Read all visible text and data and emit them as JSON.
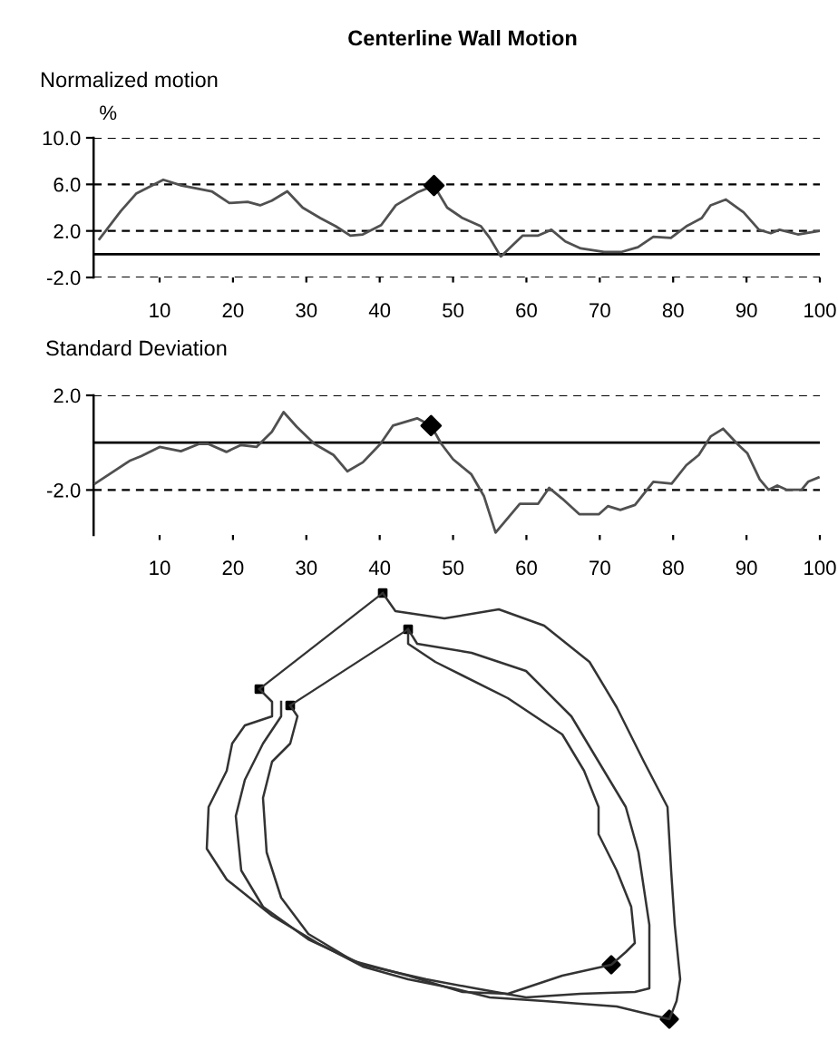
{
  "chart_data": [
    {
      "type": "line",
      "title": "Centerline Wall Motion",
      "subtitle": "Normalized motion",
      "ylabel": "%",
      "xlim": [
        1,
        100
      ],
      "xticks": [
        10,
        20,
        30,
        40,
        50,
        60,
        70,
        80,
        90,
        100
      ],
      "ylim": [
        -2,
        10
      ],
      "yticks": [
        {
          "value": -2,
          "label": "-2.0"
        },
        {
          "value": 2,
          "label": "2.0"
        },
        {
          "value": 6,
          "label": "6.0"
        },
        {
          "value": 10,
          "label": "10.0"
        }
      ],
      "grid": "y",
      "legend": false,
      "marker": "none",
      "line_style": "solid",
      "ref_lines": [
        {
          "axis": "y",
          "value": 0,
          "label": null,
          "color": "#000000",
          "line_style": "solid"
        }
      ],
      "series": [
        {
          "color": "#505050",
          "x": [
            1.8,
            4.7,
            6.8,
            10.5,
            13,
            15.4,
            17.1,
            19.5,
            22,
            23.7,
            25.3,
            27.4,
            29.5,
            31.9,
            34,
            36,
            37.7,
            40.2,
            42.2,
            45.1,
            47.4,
            49.2,
            51.3,
            53.8,
            55,
            56.5,
            59.5,
            61.6,
            63.4,
            65.3,
            67.4,
            70.6,
            73,
            75.2,
            77.3,
            79.7,
            81.8,
            83.9,
            85.1,
            87.2,
            89.6,
            91.7,
            93.3,
            94.5,
            97,
            99.9
          ],
          "values": [
            1.3,
            3.7,
            5.2,
            6.4,
            5.9,
            5.6,
            5.4,
            4.4,
            4.5,
            4.2,
            4.6,
            5.4,
            4.0,
            3.1,
            2.4,
            1.6,
            1.7,
            2.5,
            4.2,
            5.3,
            5.9,
            4.0,
            3.1,
            2.4,
            1.4,
            -0.2,
            1.6,
            1.6,
            2.1,
            1.1,
            0.5,
            0.2,
            0.2,
            0.6,
            1.5,
            1.4,
            2.4,
            3.1,
            4.2,
            4.7,
            3.6,
            2.1,
            1.8,
            2.1,
            1.7,
            2.0
          ]
        },
        {
          "type": "scatter",
          "marker": "diamond",
          "color": "#000000",
          "x": [
            47.4
          ],
          "values": [
            5.9
          ]
        }
      ]
    },
    {
      "type": "line",
      "subtitle": "Standard Deviation",
      "xlim": [
        1,
        100
      ],
      "xticks": [
        10,
        20,
        30,
        40,
        50,
        60,
        70,
        80,
        90,
        100
      ],
      "ylim": [
        -3.9,
        2
      ],
      "yticks": [
        {
          "value": -2,
          "label": "-2.0"
        },
        {
          "value": 2,
          "label": "2.0"
        }
      ],
      "grid": "y",
      "legend": false,
      "marker": "none",
      "line_style": "solid",
      "ref_lines": [
        {
          "axis": "y",
          "value": 0,
          "label": null,
          "color": "#000000",
          "line_style": "solid"
        }
      ],
      "series": [
        {
          "color": "#505050",
          "x": [
            1.2,
            5.9,
            7.5,
            10,
            12.9,
            15.4,
            16.6,
            19.1,
            21.1,
            23.2,
            25.3,
            26.9,
            28.7,
            31.1,
            33.7,
            35.6,
            37.7,
            40.1,
            41.8,
            45.1,
            47,
            48.4,
            50,
            52.5,
            54.2,
            55.8,
            59.1,
            61.6,
            63.1,
            64.9,
            67.2,
            69.9,
            71.1,
            72.8,
            74.8,
            77.3,
            79.8,
            81.8,
            83.5,
            85.1,
            86.8,
            88.9,
            90.1,
            91.8,
            93,
            94.2,
            95.5,
            97.5,
            98.4,
            99.8
          ],
          "values": [
            -1.73,
            -0.77,
            -0.57,
            -0.18,
            -0.36,
            -0.05,
            -0.05,
            -0.39,
            -0.1,
            -0.18,
            0.46,
            1.29,
            0.67,
            -0.05,
            -0.52,
            -1.21,
            -0.83,
            -0.05,
            0.72,
            1.03,
            0.72,
            -0.05,
            -0.7,
            -1.34,
            -2.25,
            -3.8,
            -2.58,
            -2.58,
            -1.91,
            -2.37,
            -3.02,
            -3.02,
            -2.68,
            -2.84,
            -2.63,
            -1.65,
            -1.73,
            -0.95,
            -0.52,
            0.26,
            0.59,
            -0.1,
            -0.44,
            -1.55,
            -1.99,
            -1.81,
            -1.99,
            -1.99,
            -1.65,
            -1.47
          ]
        },
        {
          "type": "scatter",
          "marker": "diamond",
          "color": "#000000",
          "x": [
            47
          ],
          "values": [
            0.72
          ]
        }
      ]
    }
  ]
}
